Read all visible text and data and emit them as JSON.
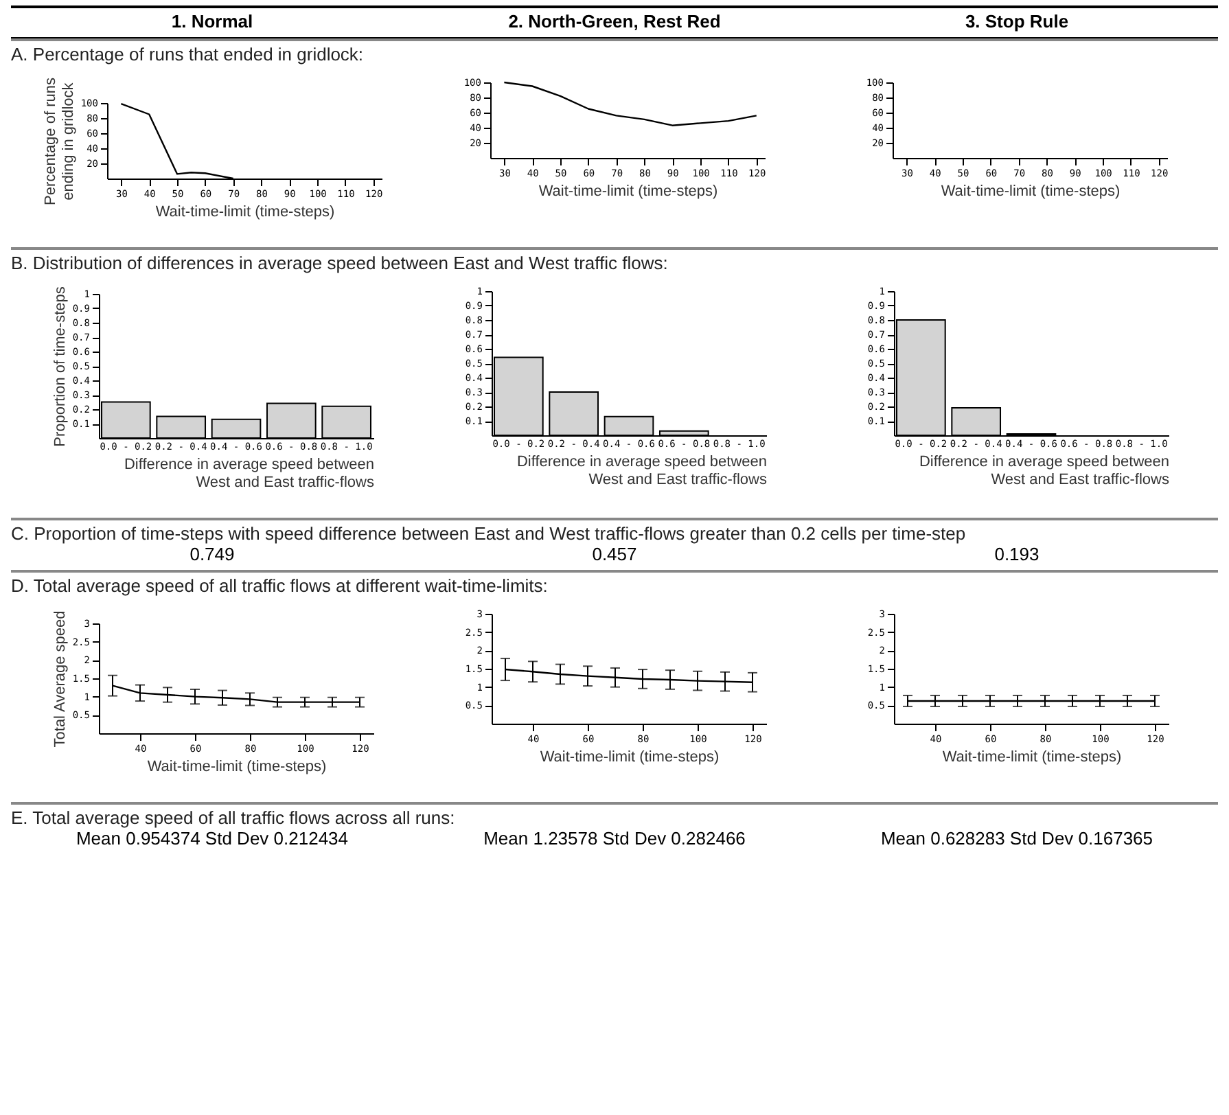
{
  "chart_data": [
    {
      "type": "other",
      "annotations": [
        "1. Normal",
        "2. North-Green, Rest Red",
        "3. Stop Rule"
      ]
    },
    {
      "type": "other",
      "title": "A. Percentage of runs that ended in gridlock:"
    },
    {
      "type": "line",
      "ylabel": "Percentage of runs\nending in gridlock",
      "xlabel": "Wait-time-limit (time-steps)",
      "x": [
        30,
        40,
        50,
        55,
        60,
        70
      ],
      "values": [
        99,
        85,
        6,
        8,
        7,
        0
      ],
      "color": "#000000",
      "xlim": [
        25,
        123
      ],
      "xticks": [
        30,
        40,
        50,
        60,
        70,
        80,
        90,
        100,
        110,
        120
      ],
      "ylim": [
        0,
        100
      ],
      "yticks": [
        20,
        40,
        60,
        80,
        100
      ]
    },
    {
      "type": "line",
      "xlabel": "Wait-time-limit (time-steps)",
      "x": [
        30,
        40,
        50,
        60,
        70,
        80,
        90,
        100,
        110,
        120
      ],
      "values": [
        100,
        95,
        82,
        65,
        56,
        51,
        43,
        46,
        49,
        56
      ],
      "color": "#000000",
      "xlim": [
        25,
        123
      ],
      "xticks": [
        30,
        40,
        50,
        60,
        70,
        80,
        90,
        100,
        110,
        120
      ],
      "ylim": [
        0,
        100
      ],
      "yticks": [
        20,
        40,
        60,
        80,
        100
      ]
    },
    {
      "type": "line",
      "xlabel": "Wait-time-limit (time-steps)",
      "color": "#000000",
      "xlim": [
        25,
        123
      ],
      "xticks": [
        30,
        40,
        50,
        60,
        70,
        80,
        90,
        100,
        110,
        120
      ],
      "ylim": [
        0,
        100
      ],
      "yticks": [
        20,
        40,
        60,
        80,
        100
      ]
    },
    {
      "type": "other",
      "title": "B. Distribution of differences in average speed between East and West traffic flows:"
    },
    {
      "type": "bar",
      "ylabel": "Proportion of time-steps",
      "xlabel": "Difference in average speed between\nWest and East traffic-flows",
      "categories": [
        "0.0 - 0.2",
        "0.2 - 0.4",
        "0.4 - 0.6",
        "0.6 - 0.8",
        "0.8 - 1.0"
      ],
      "values": [
        0.25,
        0.15,
        0.13,
        0.24,
        0.22
      ],
      "color": "#d3d3d3",
      "ylim": [
        0,
        1
      ],
      "yticks": [
        0.1,
        0.2,
        0.3,
        0.4,
        0.5,
        0.6,
        0.7,
        0.8,
        0.9,
        1
      ]
    },
    {
      "type": "bar",
      "xlabel": "Difference in average speed between\nWest and East traffic-flows",
      "categories": [
        "0.0 - 0.2",
        "0.2 - 0.4",
        "0.4 - 0.6",
        "0.6 - 0.8",
        "0.8 - 1.0"
      ],
      "values": [
        0.54,
        0.3,
        0.13,
        0.03,
        0
      ],
      "color": "#d3d3d3",
      "ylim": [
        0,
        1
      ],
      "yticks": [
        0.1,
        0.2,
        0.3,
        0.4,
        0.5,
        0.6,
        0.7,
        0.8,
        0.9,
        1
      ]
    },
    {
      "type": "bar",
      "xlabel": "Difference in average speed between\nWest and East traffic-flows",
      "categories": [
        "0.0 - 0.2",
        "0.2 - 0.4",
        "0.4 - 0.6",
        "0.6 - 0.8",
        "0.8 - 1.0"
      ],
      "values": [
        0.8,
        0.19,
        0.01,
        0,
        0
      ],
      "color": "#d3d3d3",
      "ylim": [
        0,
        1
      ],
      "yticks": [
        0.1,
        0.2,
        0.3,
        0.4,
        0.5,
        0.6,
        0.7,
        0.8,
        0.9,
        1
      ]
    },
    {
      "type": "other",
      "title": "C. Proportion of time-steps with speed difference between East and West traffic-flows greater than 0.2 cells per time-step",
      "annotations": [
        "0.749",
        "0.457",
        "0.193"
      ]
    },
    {
      "type": "other",
      "title": "D. Total average speed of all traffic flows at different wait-time-limits:"
    },
    {
      "type": "line",
      "ylabel": "Total Average speed",
      "xlabel": "Wait-time-limit (time-steps)",
      "x": [
        30,
        40,
        50,
        60,
        70,
        80,
        90,
        100,
        110,
        120
      ],
      "values": [
        1.3,
        1.1,
        1.05,
        1.0,
        0.97,
        0.93,
        0.85,
        0.85,
        0.85,
        0.85
      ],
      "errors": [
        0.28,
        0.22,
        0.2,
        0.2,
        0.2,
        0.17,
        0.13,
        0.13,
        0.13,
        0.13
      ],
      "color": "#000000",
      "xlim": [
        25,
        125
      ],
      "xticks": [
        40,
        60,
        80,
        100,
        120
      ],
      "ylim": [
        0,
        3
      ],
      "yticks": [
        0.5,
        1,
        1.5,
        2,
        2.5,
        3
      ]
    },
    {
      "type": "line",
      "xlabel": "Wait-time-limit (time-steps)",
      "x": [
        30,
        40,
        50,
        60,
        70,
        80,
        90,
        100,
        110,
        120
      ],
      "values": [
        1.48,
        1.42,
        1.35,
        1.3,
        1.26,
        1.22,
        1.2,
        1.17,
        1.15,
        1.13
      ],
      "errors": [
        0.3,
        0.28,
        0.27,
        0.27,
        0.26,
        0.26,
        0.26,
        0.26,
        0.26,
        0.26
      ],
      "color": "#000000",
      "xlim": [
        25,
        125
      ],
      "xticks": [
        40,
        60,
        80,
        100,
        120
      ],
      "ylim": [
        0,
        3
      ],
      "yticks": [
        0.5,
        1,
        1.5,
        2,
        2.5,
        3
      ]
    },
    {
      "type": "line",
      "xlabel": "Wait-time-limit (time-steps)",
      "x": [
        30,
        40,
        50,
        60,
        70,
        80,
        90,
        100,
        110,
        120
      ],
      "values": [
        0.62,
        0.62,
        0.62,
        0.62,
        0.62,
        0.62,
        0.62,
        0.62,
        0.62,
        0.62
      ],
      "errors": [
        0.15,
        0.15,
        0.15,
        0.15,
        0.15,
        0.15,
        0.15,
        0.15,
        0.15,
        0.15
      ],
      "color": "#000000",
      "xlim": [
        25,
        125
      ],
      "xticks": [
        40,
        60,
        80,
        100,
        120
      ],
      "ylim": [
        0,
        3
      ],
      "yticks": [
        0.5,
        1,
        1.5,
        2,
        2.5,
        3
      ]
    },
    {
      "type": "other",
      "title": "E. Total average speed of all traffic flows across all runs:",
      "annotations": [
        "Mean 0.954374 Std Dev 0.212434",
        "Mean 1.23578 Std Dev 0.282466",
        "Mean 0.628283 Std Dev 0.167365"
      ]
    }
  ]
}
